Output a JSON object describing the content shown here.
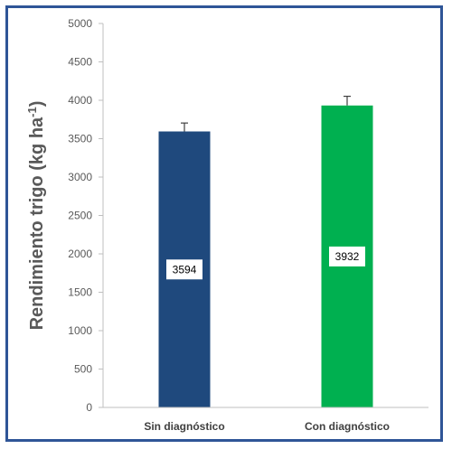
{
  "chart_data": {
    "type": "bar",
    "categories": [
      "Sin diagnóstico",
      "Con diagnóstico"
    ],
    "values": [
      3594,
      3932
    ],
    "error": [
      110,
      120
    ],
    "data_labels": [
      "3594",
      "3932"
    ],
    "colors": [
      "#1f497d",
      "#00b050"
    ],
    "ylabel": {
      "main": "Rendimiento trigo (kg ha",
      "superscript": "-1",
      "close": ")"
    },
    "ylim": [
      0,
      5000
    ],
    "yticks": [
      "0",
      "500",
      "1000",
      "1500",
      "2000",
      "2500",
      "3000",
      "3500",
      "4000",
      "4500",
      "5000"
    ],
    "grid": false,
    "frame_color": "#2f5597"
  }
}
